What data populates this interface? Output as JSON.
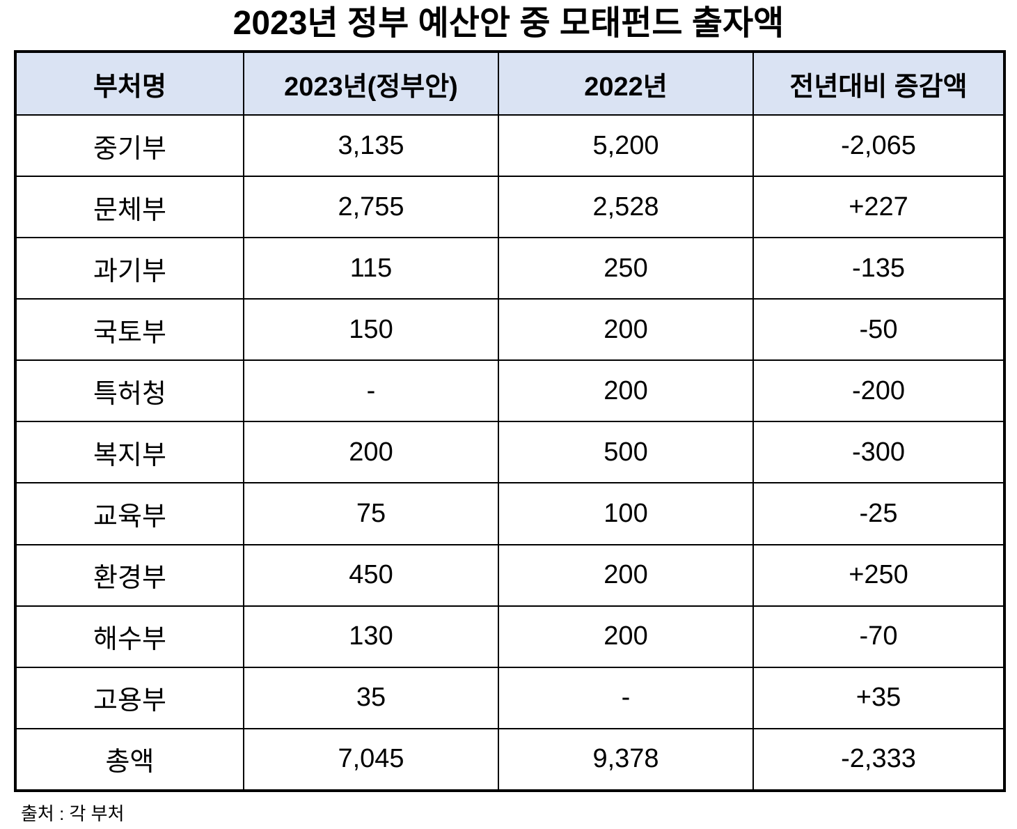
{
  "title": "2023년 정부 예산안 중 모태펀드 출자액",
  "table": {
    "header_fill": "#DAE3F3",
    "columns": [
      "부처명",
      "2023년(정부안)",
      "2022년",
      "전년대비 증감액"
    ],
    "rows": [
      [
        "중기부",
        "3,135",
        "5,200",
        "-2,065"
      ],
      [
        "문체부",
        "2,755",
        "2,528",
        "+227"
      ],
      [
        "과기부",
        "115",
        "250",
        "-135"
      ],
      [
        "국토부",
        "150",
        "200",
        "-50"
      ],
      [
        "특허청",
        "-",
        "200",
        "-200"
      ],
      [
        "복지부",
        "200",
        "500",
        "-300"
      ],
      [
        "교육부",
        "75",
        "100",
        "-25"
      ],
      [
        "환경부",
        "450",
        "200",
        "+250"
      ],
      [
        "해수부",
        "130",
        "200",
        "-70"
      ],
      [
        "고용부",
        "35",
        "-",
        "+35"
      ],
      [
        "총액",
        "7,045",
        "9,378",
        "-2,333"
      ]
    ]
  },
  "source_note": "출처 : 각 부처"
}
